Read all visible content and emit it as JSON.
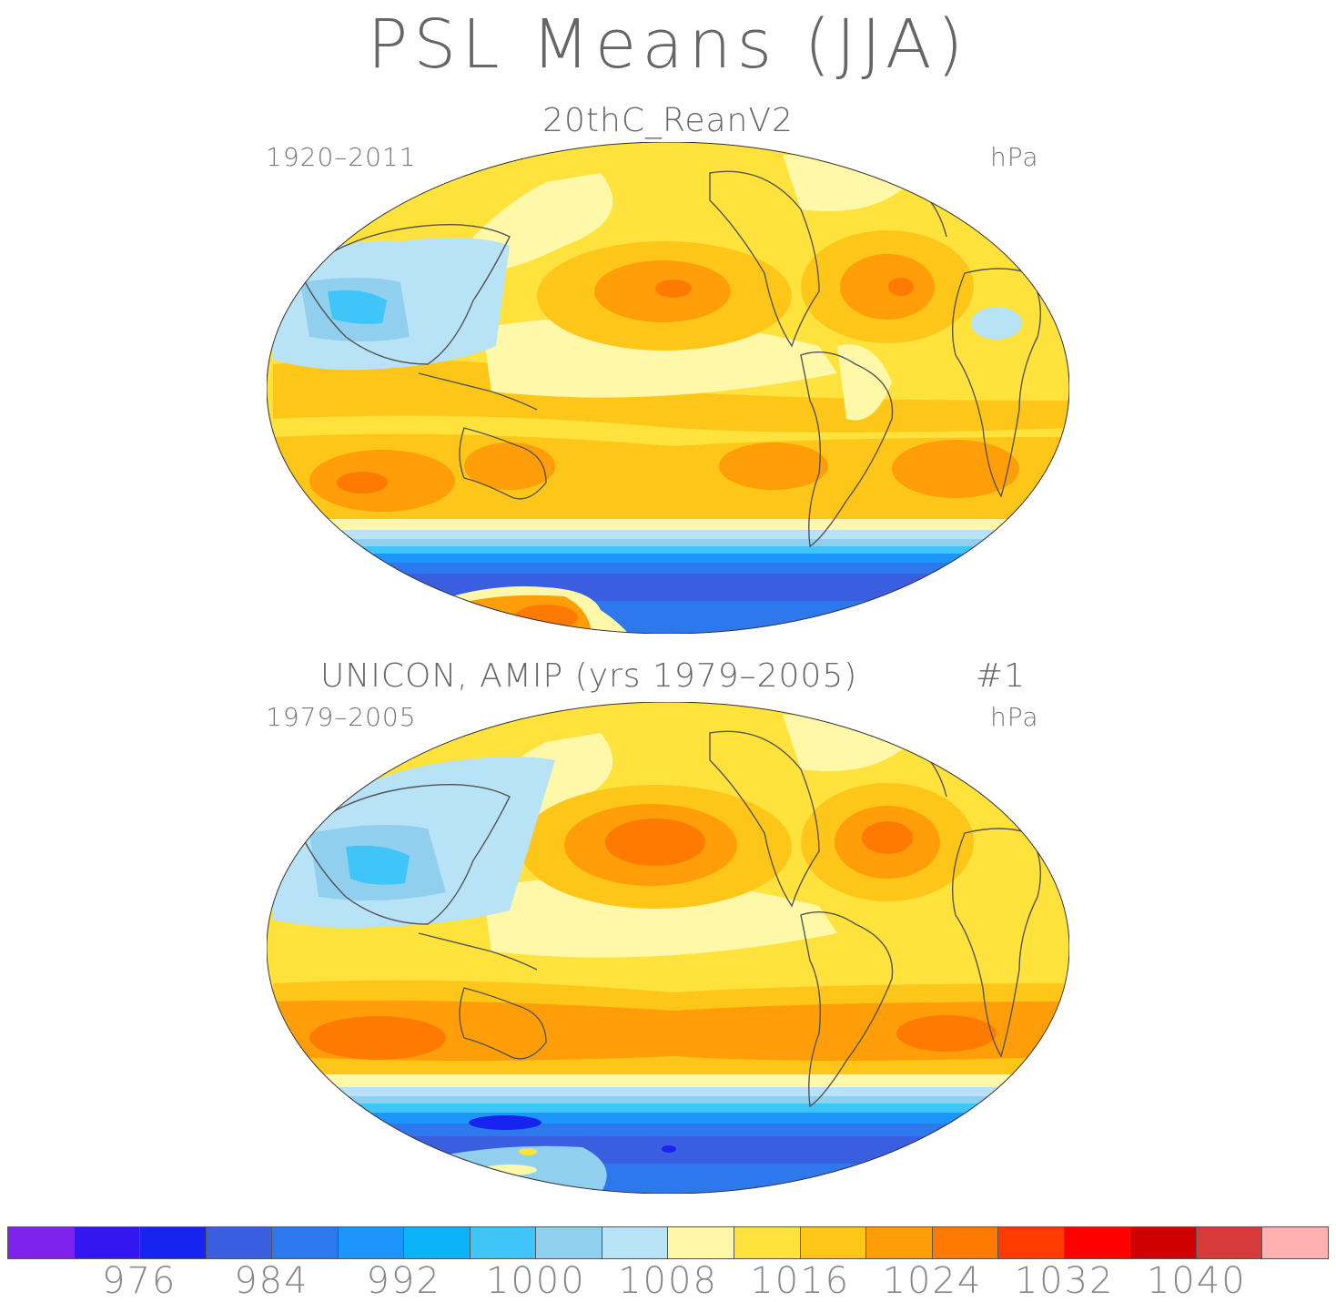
{
  "title": "PSL Means (JJA)",
  "panels": [
    {
      "title": "20thC_ReanV2",
      "left_label": "1920–2011",
      "right_label": "hPa",
      "extra": ""
    },
    {
      "title": "UNICON, AMIP (yrs 1979–2005)",
      "left_label": "1979–2005",
      "right_label": "hPa",
      "extra": "#1"
    }
  ],
  "colorbar": {
    "colors": [
      "#7f22ee",
      "#3316f0",
      "#1723ee",
      "#3a5ee0",
      "#2e78ee",
      "#1d96fb",
      "#0bb3fb",
      "#40c5f8",
      "#90d0ee",
      "#b8e2f5",
      "#fff8a8",
      "#ffe23c",
      "#ffc61a",
      "#ff9e08",
      "#ff7a00",
      "#ff3b00",
      "#ff0000",
      "#d10000",
      "#d63a3a",
      "#ffb0b0"
    ],
    "tick_labels": [
      "976",
      "984",
      "992",
      "1000",
      "1008",
      "1016",
      "1024",
      "1032",
      "1040"
    ]
  }
}
